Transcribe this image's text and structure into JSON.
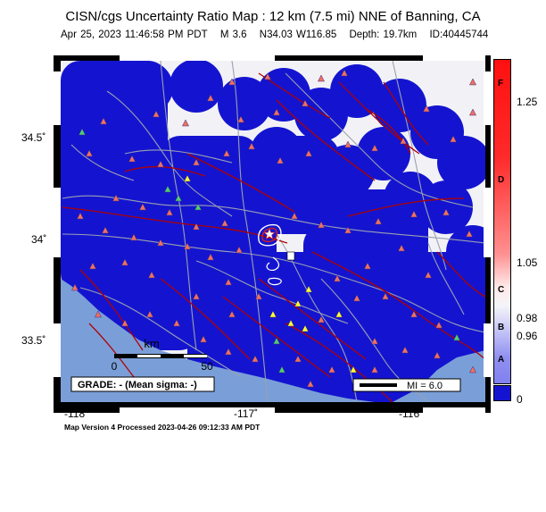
{
  "title": "CISN/cgs Uncertainty Ratio Map : 12 km (7.5 mi) NNE of Banning, CA",
  "subtitle": {
    "datetime": "Apr 25, 2023 11:46:58 PM PDT",
    "magnitude": "M 3.6",
    "location": "N34.03 W116.85",
    "depth": "Depth: 19.7km",
    "event_id": "ID:40445744"
  },
  "map": {
    "lat_ticks": [
      "34.5˚",
      "34˚",
      "33.5˚"
    ],
    "lon_ticks": [
      "-118˚",
      "-117˚",
      "-116˚"
    ],
    "scale_bar": {
      "unit": "km",
      "min": "0",
      "max": "50"
    },
    "grade_box": "GRADE: - (Mean sigma: -)",
    "mi_legend": "MI = 6.0",
    "colors": {
      "ocean": "#7a9fd8",
      "uncertainty_blue": "#1414d0",
      "land_white": "#f2f2f6",
      "fault": "#b00000",
      "station_red": "#f07060",
      "station_green": "#4cd070",
      "station_yellow": "#ffff30"
    },
    "station_marker": "triangle",
    "epicenter_marker": "star"
  },
  "colorbar": {
    "letters": [
      "F",
      "D",
      "C",
      "B",
      "A"
    ],
    "values": [
      "1.25",
      "1.05",
      "0.98",
      "0.96",
      "0"
    ]
  },
  "footer": "Map Version 4 Processed 2023-04-26 09:12:33 AM PDT"
}
